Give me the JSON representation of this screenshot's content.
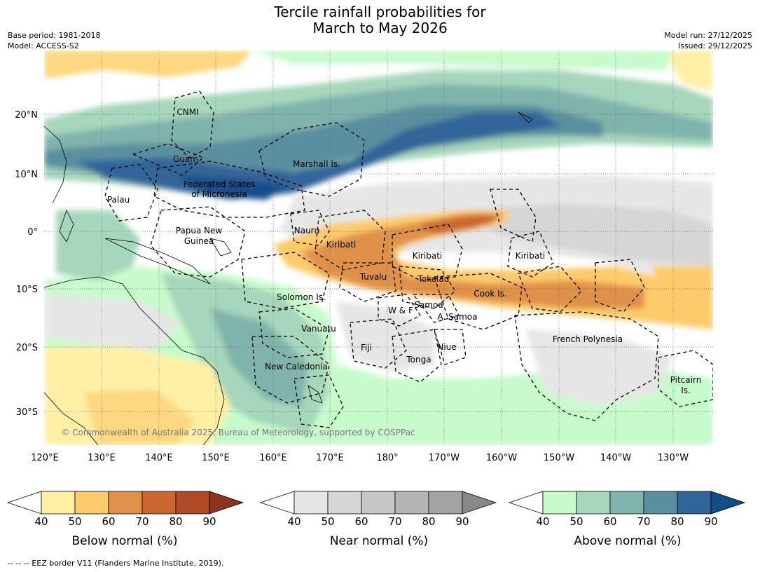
{
  "header": {
    "title_line1": "Tercile rainfall probabilities for",
    "title_line2": "March to May 2026",
    "base_period": "Base period: 1981-2018",
    "model": "Model: ACCESS-S2",
    "model_run": "Model run: 27/12/2025",
    "issued": "Issued: 29/12/2025"
  },
  "map": {
    "lat_labels": [
      "20°N",
      "10°N",
      "0°",
      "10°S",
      "20°S",
      "30°S"
    ],
    "lon_labels": [
      "120°E",
      "130°E",
      "140°E",
      "150°E",
      "160°E",
      "170°E",
      "180°",
      "170°W",
      "160°W",
      "150°W",
      "140°W",
      "130°W"
    ],
    "regions": [
      "CNMI",
      "Guam",
      "Marshall Is.",
      "Federated States",
      "of Micronesia",
      "Palau",
      "Papua New",
      "Guinea",
      "Nauru",
      "Kiribati",
      "Kiribati",
      "Kiribati",
      "Tuvalu",
      "Tokelau",
      "Solomon Is.",
      "Samoa",
      "W & F",
      "A. Samoa",
      "Cook Is.",
      "Vanuatu",
      "Fiji",
      "Niue",
      "Tonga",
      "French Polynesia",
      "New Caledonia",
      "Pitcairn",
      "Is."
    ],
    "copyright": "© Commonwealth of Australia 2025, Bureau of Meteorology, supported by COSPPac"
  },
  "colorbars": [
    {
      "label": "Below normal (%)",
      "ticks": [
        "40",
        "50",
        "60",
        "70",
        "80",
        "90"
      ],
      "colors": [
        "#fff0a6",
        "#fdcb6c",
        "#e0914a",
        "#cc6631",
        "#b04a27",
        "#8e3520"
      ]
    },
    {
      "label": "Near normal (%)",
      "ticks": [
        "40",
        "50",
        "60",
        "70",
        "80",
        "90"
      ],
      "colors": [
        "#e6e6e6",
        "#d6d6d6",
        "#c6c6c6",
        "#b4b4b4",
        "#a3a3a3",
        "#888888"
      ]
    },
    {
      "label": "Above normal (%)",
      "ticks": [
        "40",
        "50",
        "60",
        "70",
        "80",
        "90"
      ],
      "colors": [
        "#c7fbcc",
        "#a6d6bb",
        "#80b3ac",
        "#5a8f9f",
        "#31659a",
        "#124d8a"
      ]
    }
  ],
  "footnote": "--  --  -- EEZ border V11 (Flanders Marine Institute, 2019)."
}
